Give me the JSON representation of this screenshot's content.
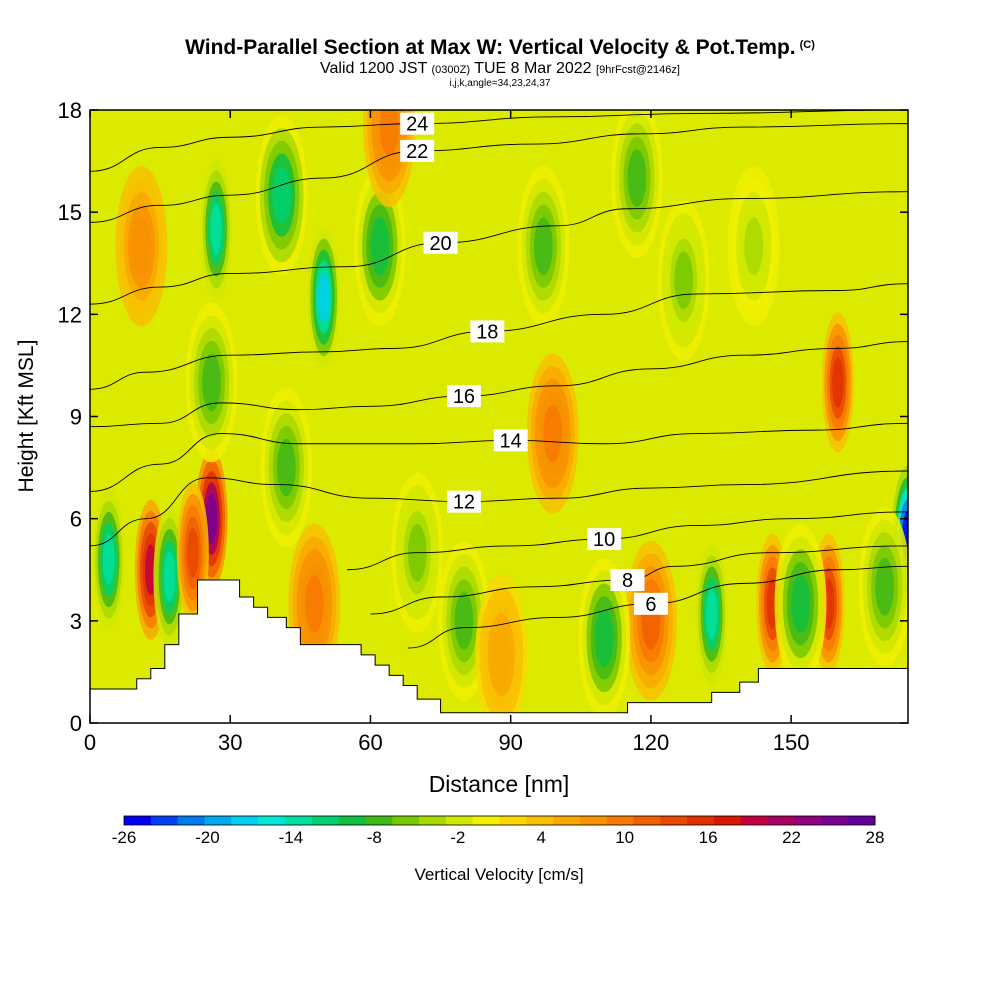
{
  "title": {
    "main": "Wind-Parallel Section at Max W: Vertical Velocity & Pot.Temp.",
    "copyright": "(C)",
    "valid_a": "Valid 1200 JST",
    "valid_utc": "(0300Z)",
    "valid_b": "TUE 8 Mar 2022",
    "fcst": "[9hrFcst@2146z]",
    "params": "i,j,k,angle=34,23,24,37"
  },
  "chart_data": {
    "type": "heatmap",
    "xlabel": "Distance [nm]",
    "ylabel": "Height [Kft MSL]",
    "xlim": [
      0,
      175
    ],
    "ylim": [
      0,
      18
    ],
    "x_ticks": [
      0,
      30,
      60,
      90,
      120,
      150
    ],
    "y_ticks": [
      0,
      3,
      6,
      9,
      12,
      15,
      18
    ],
    "colorbar": {
      "label": "Vertical Velocity [cm/s]",
      "tick_labels": [
        "-26",
        "-20",
        "-14",
        "-8",
        "-2",
        "4",
        "10",
        "16",
        "22",
        "28"
      ],
      "range": [
        -26,
        28
      ],
      "colors": [
        "#0000f0",
        "#0040f0",
        "#0078f0",
        "#00a8f0",
        "#00d0f0",
        "#00e8d8",
        "#00e0a0",
        "#00d070",
        "#10c040",
        "#40b818",
        "#78c800",
        "#a8d800",
        "#d0e800",
        "#f0f000",
        "#f8d800",
        "#f8c000",
        "#f8a800",
        "#f89000",
        "#f87800",
        "#f06000",
        "#e84800",
        "#e03000",
        "#d81800",
        "#c00040",
        "#a80060",
        "#900080",
        "#780090",
        "#600098"
      ]
    },
    "terrain_profile_kft": [
      [
        0,
        1.0
      ],
      [
        10,
        1.0
      ],
      [
        10,
        1.3
      ],
      [
        13,
        1.3
      ],
      [
        13,
        1.6
      ],
      [
        16,
        1.6
      ],
      [
        16,
        2.3
      ],
      [
        19,
        2.3
      ],
      [
        19,
        3.2
      ],
      [
        23,
        3.2
      ],
      [
        23,
        4.2
      ],
      [
        32,
        4.2
      ],
      [
        32,
        3.7
      ],
      [
        35,
        3.7
      ],
      [
        35,
        3.4
      ],
      [
        38,
        3.4
      ],
      [
        38,
        3.1
      ],
      [
        42,
        3.1
      ],
      [
        42,
        2.8
      ],
      [
        45,
        2.8
      ],
      [
        45,
        2.3
      ],
      [
        58,
        2.3
      ],
      [
        58,
        2.0
      ],
      [
        61,
        2.0
      ],
      [
        61,
        1.7
      ],
      [
        64,
        1.7
      ],
      [
        64,
        1.4
      ],
      [
        67,
        1.4
      ],
      [
        67,
        1.1
      ],
      [
        70,
        1.1
      ],
      [
        70,
        0.7
      ],
      [
        75,
        0.7
      ],
      [
        75,
        0.3
      ],
      [
        115,
        0.3
      ],
      [
        115,
        0.6
      ],
      [
        133,
        0.6
      ],
      [
        133,
        0.9
      ],
      [
        139,
        0.9
      ],
      [
        139,
        1.2
      ],
      [
        143,
        1.2
      ],
      [
        143,
        1.6
      ],
      [
        175,
        1.6
      ]
    ],
    "w_cells_cms": [
      {
        "x": 13,
        "y": 4.5,
        "w": 20
      },
      {
        "x": 17,
        "y": 4.3,
        "w": -14
      },
      {
        "x": 26,
        "y": 6.0,
        "w": 26
      },
      {
        "x": 22,
        "y": 5.0,
        "w": 14
      },
      {
        "x": 4,
        "y": 4.8,
        "w": -14
      },
      {
        "x": 50,
        "y": 12.5,
        "w": -17
      },
      {
        "x": 27,
        "y": 14.5,
        "w": -14
      },
      {
        "x": 26,
        "y": 10.0,
        "w": -8
      },
      {
        "x": 11,
        "y": 14.0,
        "w": 8
      },
      {
        "x": 62,
        "y": 14.0,
        "w": -10
      },
      {
        "x": 41,
        "y": 15.5,
        "w": -12
      },
      {
        "x": 42,
        "y": 7.5,
        "w": -8
      },
      {
        "x": 97,
        "y": 14.0,
        "w": -8
      },
      {
        "x": 99,
        "y": 8.5,
        "w": 10
      },
      {
        "x": 160,
        "y": 10.0,
        "w": 16
      },
      {
        "x": 133,
        "y": 3.2,
        "w": -14
      },
      {
        "x": 175,
        "y": 5.5,
        "w": -26
      },
      {
        "x": 146,
        "y": 3.5,
        "w": 16
      },
      {
        "x": 158,
        "y": 3.5,
        "w": 16
      },
      {
        "x": 152,
        "y": 3.5,
        "w": -10
      },
      {
        "x": 120,
        "y": 3.0,
        "w": 12
      },
      {
        "x": 48,
        "y": 3.5,
        "w": 10
      },
      {
        "x": 127,
        "y": 13.0,
        "w": -6
      },
      {
        "x": 64,
        "y": 17.5,
        "w": 10
      },
      {
        "x": 117,
        "y": 16.0,
        "w": -8
      },
      {
        "x": 142,
        "y": 14.0,
        "w": -4
      },
      {
        "x": 170,
        "y": 4.0,
        "w": -8
      },
      {
        "x": 80,
        "y": 3.0,
        "w": -8
      },
      {
        "x": 110,
        "y": 2.5,
        "w": -10
      },
      {
        "x": 70,
        "y": 5.0,
        "w": -6
      },
      {
        "x": 88,
        "y": 2.0,
        "w": 6
      }
    ],
    "theta_contours": [
      {
        "label": "6",
        "points": [
          [
            68,
            2.2
          ],
          [
            80,
            2.8
          ],
          [
            100,
            3.1
          ],
          [
            120,
            3.5
          ],
          [
            140,
            4.1
          ],
          [
            160,
            4.5
          ],
          [
            175,
            4.6
          ]
        ]
      },
      {
        "label": "8",
        "points": [
          [
            60,
            3.2
          ],
          [
            75,
            3.7
          ],
          [
            95,
            4.0
          ],
          [
            115,
            4.2
          ],
          [
            125,
            4.6
          ],
          [
            145,
            5.0
          ],
          [
            175,
            5.2
          ]
        ]
      },
      {
        "label": "10",
        "points": [
          [
            55,
            4.5
          ],
          [
            70,
            5.0
          ],
          [
            90,
            5.2
          ],
          [
            110,
            5.4
          ],
          [
            130,
            5.8
          ],
          [
            150,
            6.0
          ],
          [
            175,
            6.2
          ]
        ]
      },
      {
        "label": "12",
        "points": [
          [
            0,
            5.2
          ],
          [
            12,
            6.0
          ],
          [
            25,
            7.2
          ],
          [
            40,
            7.0
          ],
          [
            60,
            6.6
          ],
          [
            80,
            6.5
          ],
          [
            100,
            6.6
          ],
          [
            120,
            6.9
          ],
          [
            140,
            7.0
          ],
          [
            175,
            7.4
          ]
        ]
      },
      {
        "label": "14",
        "points": [
          [
            0,
            6.8
          ],
          [
            15,
            7.6
          ],
          [
            28,
            8.5
          ],
          [
            45,
            8.2
          ],
          [
            70,
            8.2
          ],
          [
            90,
            8.3
          ],
          [
            110,
            8.2
          ],
          [
            130,
            8.5
          ],
          [
            155,
            8.6
          ],
          [
            175,
            8.8
          ]
        ]
      },
      {
        "label": "16",
        "points": [
          [
            0,
            8.7
          ],
          [
            15,
            8.8
          ],
          [
            28,
            9.4
          ],
          [
            45,
            9.2
          ],
          [
            60,
            9.3
          ],
          [
            80,
            9.6
          ],
          [
            100,
            9.9
          ],
          [
            120,
            10.4
          ],
          [
            140,
            10.8
          ],
          [
            160,
            11.0
          ],
          [
            175,
            11.2
          ]
        ]
      },
      {
        "label": "18",
        "points": [
          [
            0,
            9.8
          ],
          [
            12,
            10.3
          ],
          [
            30,
            10.8
          ],
          [
            50,
            10.9
          ],
          [
            65,
            11.0
          ],
          [
            85,
            11.5
          ],
          [
            110,
            12.0
          ],
          [
            130,
            12.6
          ],
          [
            160,
            12.7
          ],
          [
            175,
            12.9
          ]
        ]
      },
      {
        "label": "20",
        "points": [
          [
            0,
            12.3
          ],
          [
            15,
            12.8
          ],
          [
            30,
            13.2
          ],
          [
            55,
            13.4
          ],
          [
            75,
            14.1
          ],
          [
            100,
            14.6
          ],
          [
            115,
            15.1
          ],
          [
            140,
            15.4
          ],
          [
            175,
            15.6
          ]
        ]
      },
      {
        "label": "22",
        "points": [
          [
            0,
            14.7
          ],
          [
            15,
            15.2
          ],
          [
            30,
            15.5
          ],
          [
            50,
            16.0
          ],
          [
            70,
            16.8
          ],
          [
            95,
            17.0
          ],
          [
            118,
            17.3
          ],
          [
            140,
            17.5
          ],
          [
            175,
            17.6
          ]
        ]
      },
      {
        "label": "24",
        "points": [
          [
            0,
            16.2
          ],
          [
            15,
            16.9
          ],
          [
            30,
            17.2
          ],
          [
            50,
            17.5
          ],
          [
            70,
            17.6
          ],
          [
            100,
            17.8
          ],
          [
            130,
            17.9
          ],
          [
            175,
            18.0
          ]
        ]
      }
    ]
  }
}
